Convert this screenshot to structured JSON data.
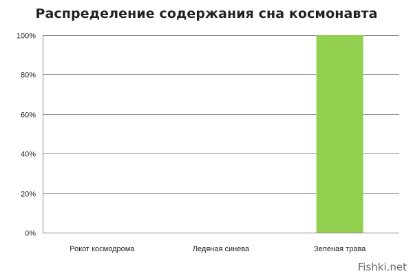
{
  "chart_data": {
    "type": "bar",
    "title": "Распределение содержания сна космонавта",
    "categories": [
      "Рокот космодрома",
      "Ледяная синева",
      "Зеленая трава"
    ],
    "values": [
      0,
      0,
      100
    ],
    "ylim": [
      0,
      100
    ],
    "yticks": [
      0,
      20,
      40,
      60,
      80,
      100
    ],
    "ytick_labels": [
      "0%",
      "20%",
      "40%",
      "60%",
      "80%",
      "100%"
    ],
    "xlabel": "",
    "ylabel": "",
    "grid": true,
    "bar_color": "#92d050",
    "grid_color": "#868686"
  },
  "watermark": "Fishki.net"
}
